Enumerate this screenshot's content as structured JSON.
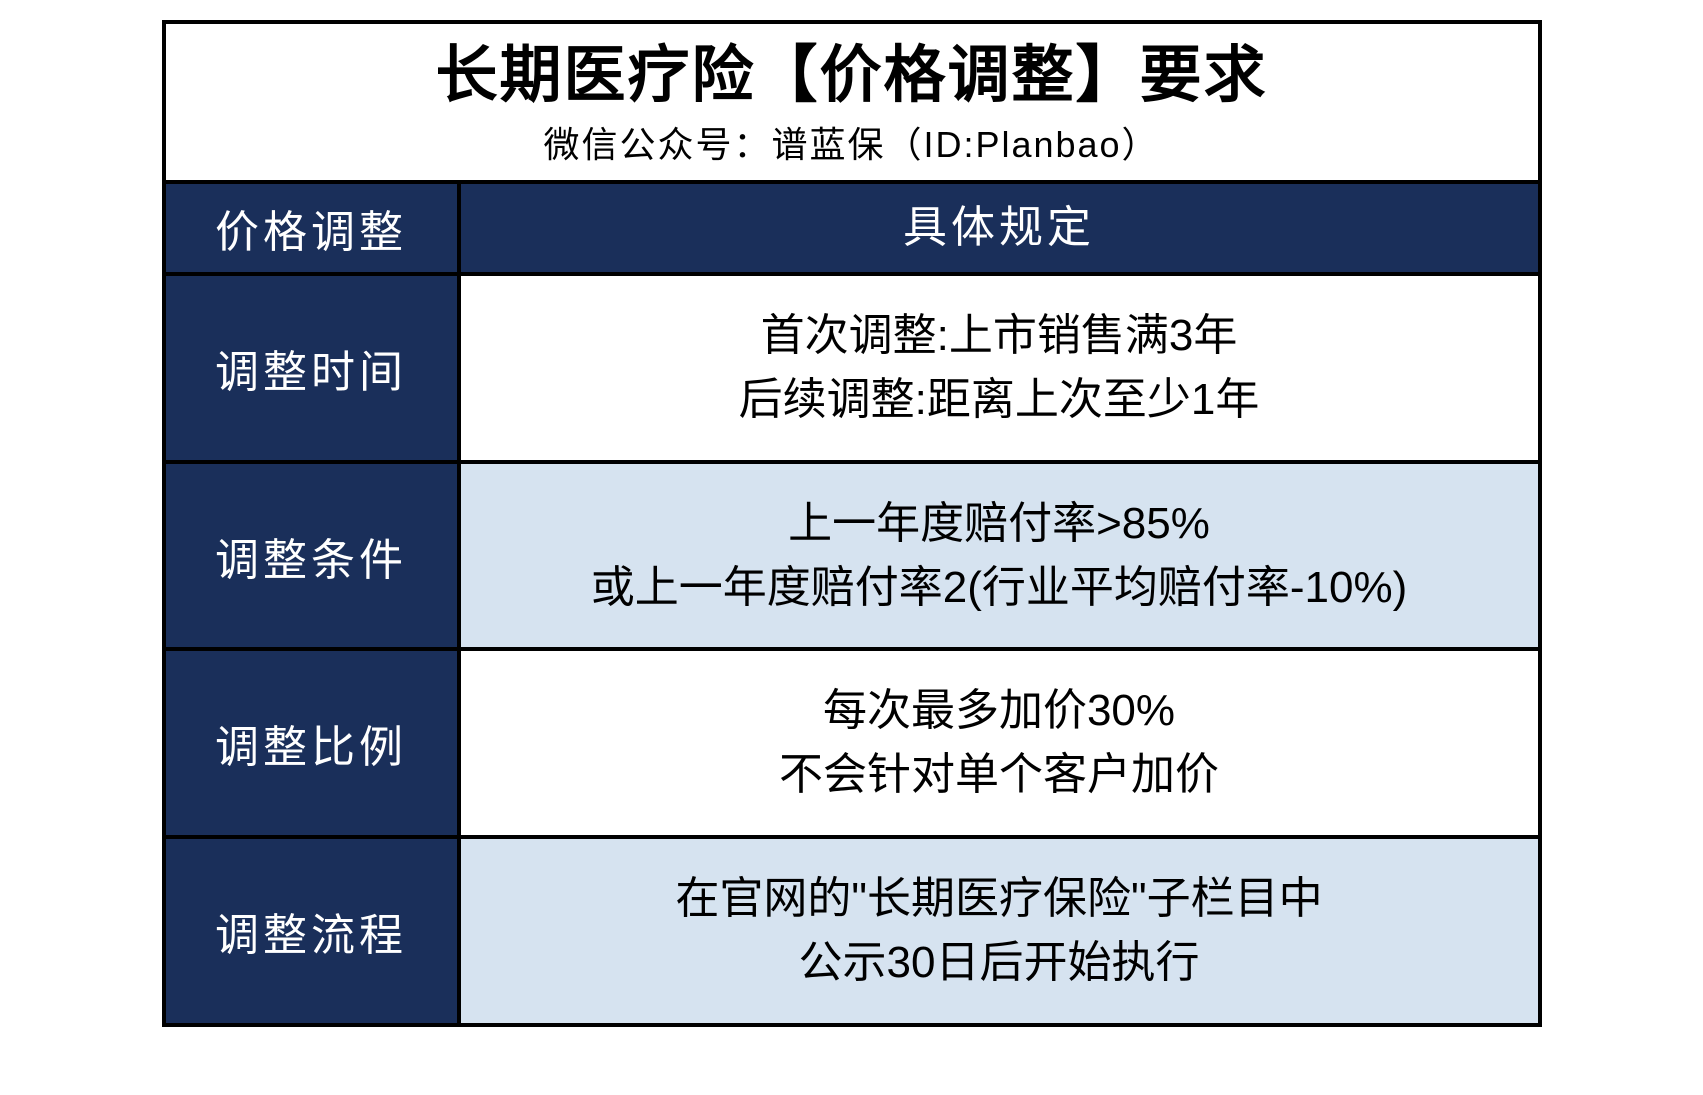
{
  "header": {
    "title": "长期医疗险【价格调整】要求",
    "subtitle": "微信公众号：谱蓝保（ID:Planbao）"
  },
  "table": {
    "header_left": "价格调整",
    "header_right": "具体规定",
    "rows": [
      {
        "label": "调整时间",
        "lines": [
          "首次调整:上市销售满3年",
          "后续调整:距离上次至少1年"
        ],
        "bg": "white"
      },
      {
        "label": "调整条件",
        "lines": [
          "上一年度赔付率>85%",
          "或上一年度赔付率2(行业平均赔付率-10%)"
        ],
        "bg": "light"
      },
      {
        "label": "调整比例",
        "lines": [
          "每次最多加价30%",
          "不会针对单个客户加价"
        ],
        "bg": "white"
      },
      {
        "label": "调整流程",
        "lines": [
          "在官网的\"长期医疗保险\"子栏目中",
          "公示30日后开始执行"
        ],
        "bg": "light"
      }
    ]
  },
  "styling": {
    "border_color": "#000000",
    "dark_bg": "#1a2f5a",
    "light_bg": "#d6e3f0",
    "white_bg": "#ffffff",
    "title_fontsize": 62,
    "subtitle_fontsize": 36,
    "cell_fontsize": 44,
    "left_col_width": 295,
    "container_width": 1380
  }
}
